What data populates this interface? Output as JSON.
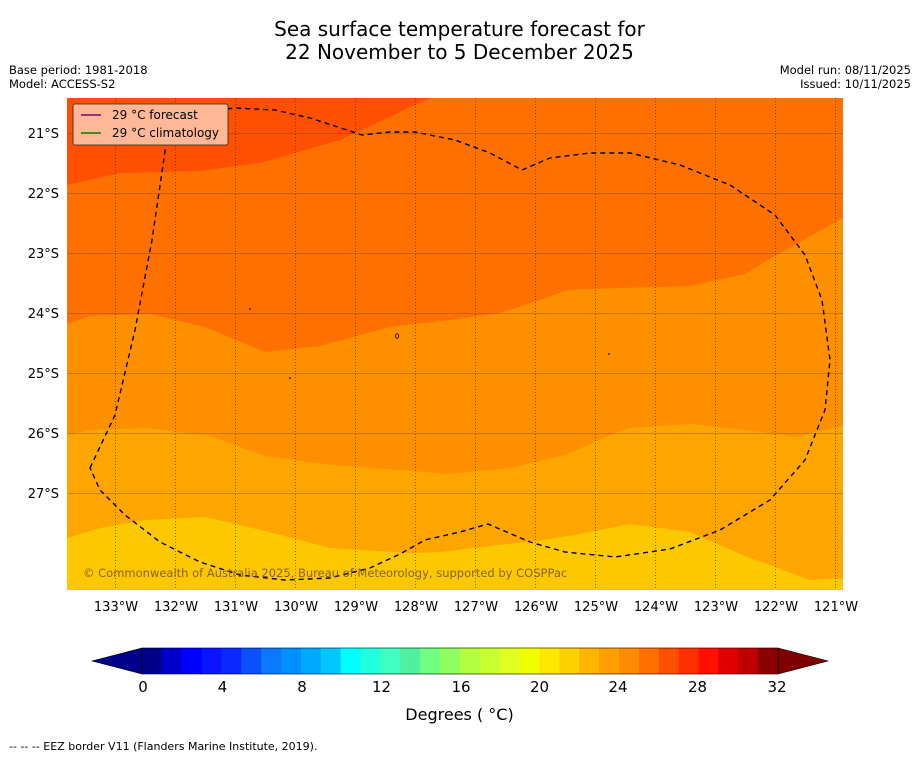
{
  "header": {
    "title_line1": "Sea surface temperature forecast for",
    "title_line2": "22 November to 5 December 2025",
    "base_period": "Base period: 1981-2018",
    "model": "Model: ACCESS-S2",
    "model_run": "Model run: 08/11/2025",
    "issued": "Issued: 10/11/2025"
  },
  "map": {
    "lat_labels": [
      "21°S",
      "22°S",
      "23°S",
      "24°S",
      "25°S",
      "26°S",
      "27°S"
    ],
    "lon_labels": [
      "133°W",
      "132°W",
      "131°W",
      "130°W",
      "129°W",
      "128°W",
      "127°W",
      "126°W",
      "125°W",
      "124°W",
      "123°W",
      "122°W",
      "121°W"
    ],
    "copyright": "© Commonwealth of Australia 2025, Bureau of Meteorology, supported by COSPPac",
    "legend": {
      "forecast": "29 °C  forecast",
      "climatology": "29 °C  climatology",
      "forecast_color": "#800080",
      "climatology_color": "#008000"
    },
    "band_colors": [
      "#FE5000",
      "#FE7000",
      "#FE9000",
      "#FEA500",
      "#FEC800"
    ]
  },
  "colorbar": {
    "ticks": [
      "0",
      "4",
      "8",
      "12",
      "16",
      "20",
      "24",
      "28",
      "32"
    ],
    "label": "Degrees ( °C)",
    "colors": [
      "#00008B",
      "#0000CD",
      "#0000FF",
      "#0A14FF",
      "#0A28FF",
      "#0A50FF",
      "#0A78FF",
      "#0090FF",
      "#00A8FF",
      "#00C8FF",
      "#00FFFF",
      "#22FFDD",
      "#40FFC0",
      "#50F0A0",
      "#70FF80",
      "#90FF60",
      "#B4FF40",
      "#C8FF30",
      "#E0FF20",
      "#F0FF00",
      "#FFE800",
      "#FFD000",
      "#FFB400",
      "#FFA000",
      "#FF8C00",
      "#FF7000",
      "#FF5000",
      "#FF3000",
      "#FF1000",
      "#E00000",
      "#C00000",
      "#8B0000"
    ],
    "low_extend": "#00008B",
    "high_extend": "#800000"
  },
  "footnote": "--  --  -- EEZ border V11 (Flanders Marine Institute, 2019)."
}
